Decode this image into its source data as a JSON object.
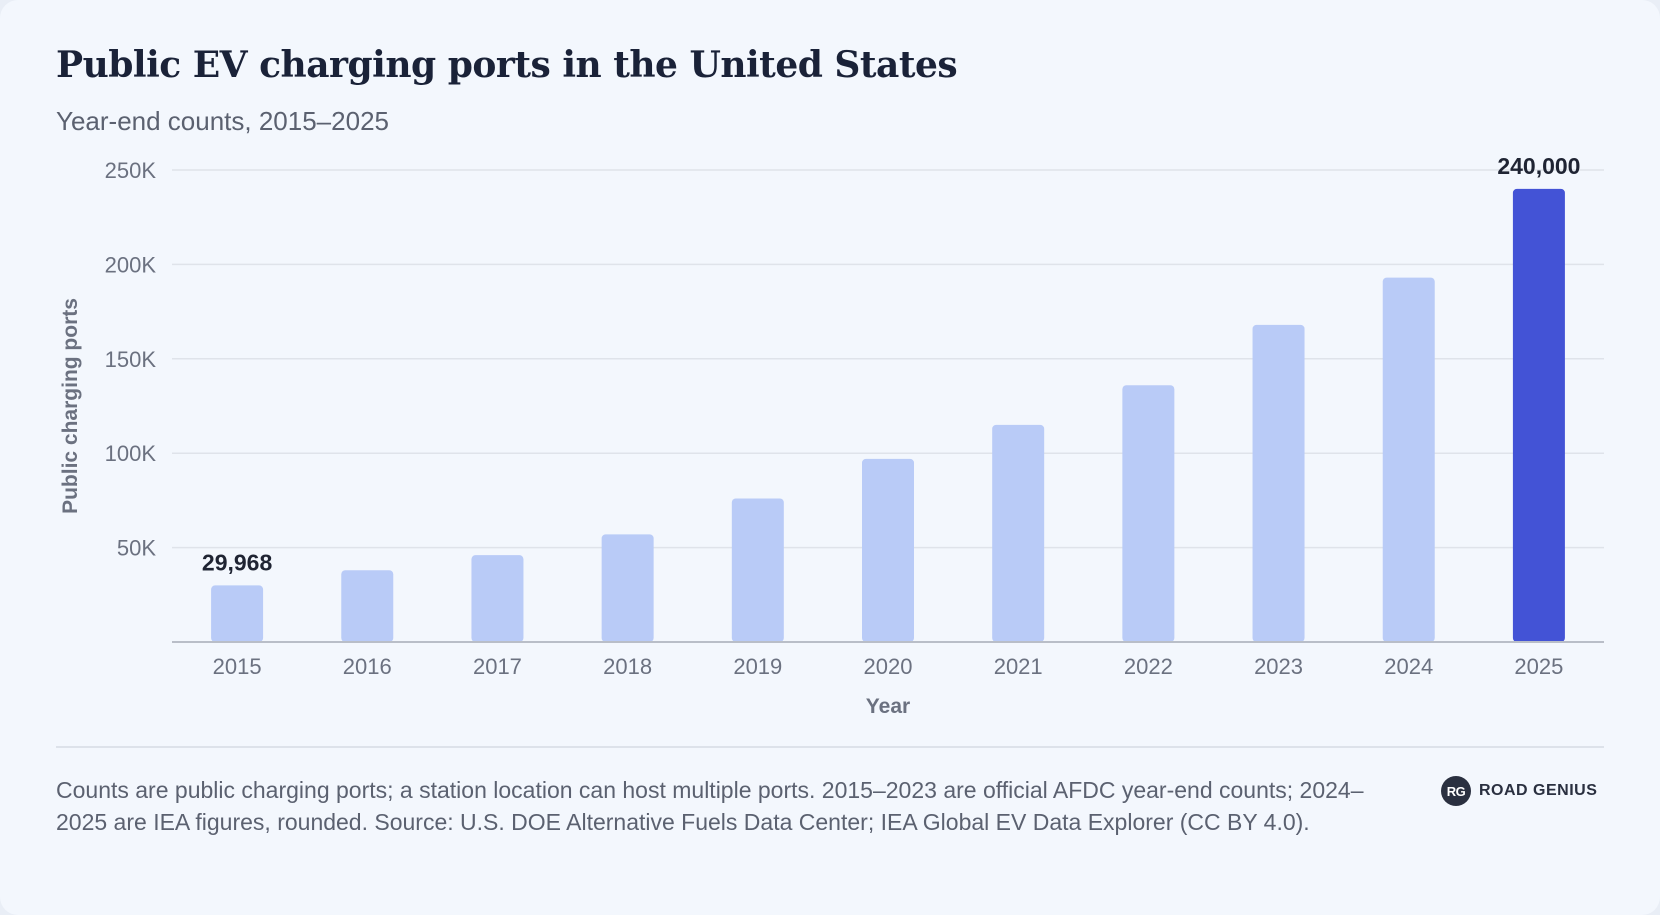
{
  "chart_data": {
    "type": "bar",
    "title": "Public EV charging ports in the United States",
    "subtitle": "Year-end counts, 2015–2025",
    "xlabel": "Year",
    "ylabel": "Public charging ports",
    "categories": [
      "2015",
      "2016",
      "2017",
      "2018",
      "2019",
      "2020",
      "2021",
      "2022",
      "2023",
      "2024",
      "2025"
    ],
    "values": [
      29968,
      38000,
      46000,
      57000,
      76000,
      97000,
      115000,
      136000,
      168000,
      193000,
      240000
    ],
    "ylim": [
      0,
      250000
    ],
    "yticks": [
      50000,
      100000,
      150000,
      200000,
      250000
    ],
    "ytick_labels": [
      "50K",
      "100K",
      "150K",
      "200K",
      "250K"
    ],
    "grid": true,
    "highlight_index": 10,
    "data_labels": [
      {
        "index": 0,
        "text": "29,968"
      },
      {
        "index": 10,
        "text": "240,000"
      }
    ],
    "colors": {
      "bar": "#b9cbf7",
      "highlight": "#4353d6",
      "grid": "#dfe3ea",
      "axis": "#b9bec8",
      "tick_text": "#6b7180",
      "label_text": "#1f2433"
    }
  },
  "footnote": "Counts are public charging ports; a station location can host multiple ports. 2015–2023 are official AFDC year-end counts; 2024–2025 are IEA figures, rounded. Source: U.S. DOE Alternative Fuels Data Center; IEA Global EV Data Explorer (CC BY 4.0).",
  "brand": {
    "mark": "RG",
    "name": "ROAD GENIUS"
  }
}
